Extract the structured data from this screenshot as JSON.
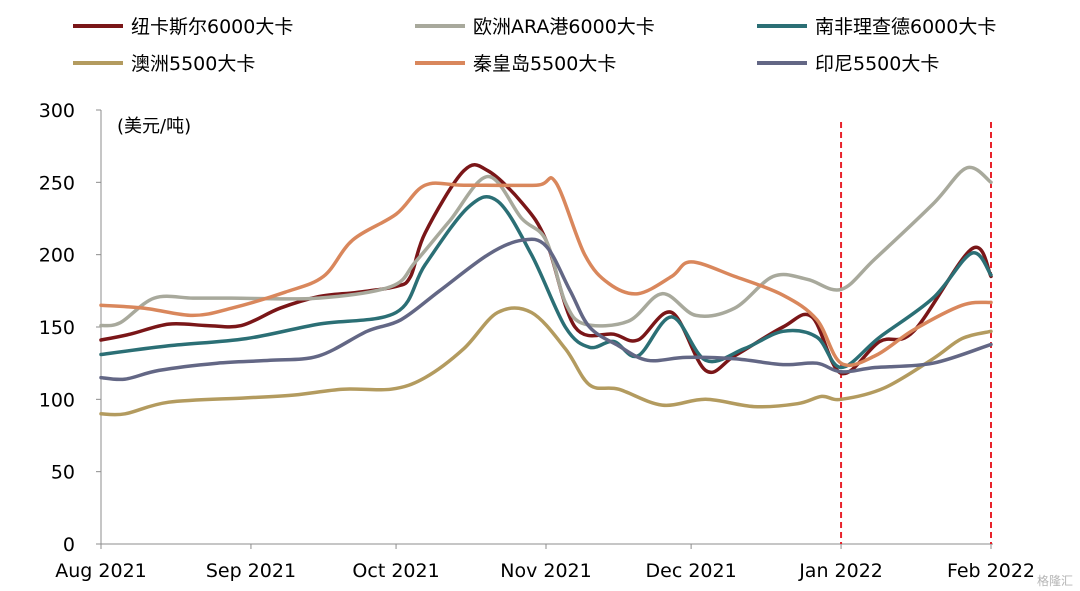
{
  "chart_data": {
    "type": "line",
    "title": "",
    "xlabel": "",
    "ylabel": "(美元/吨)",
    "ylim": [
      0,
      300
    ],
    "yticks": [
      0,
      50,
      100,
      150,
      200,
      250,
      300
    ],
    "xlim": [
      "2021-08-01",
      "2022-02-01"
    ],
    "x_tick_labels": [
      {
        "date": "2021-08-01",
        "label": "Aug 2021"
      },
      {
        "date": "2021-09-01",
        "label": "Sep 2021"
      },
      {
        "date": "2021-10-01",
        "label": "Oct 2021"
      },
      {
        "date": "2021-11-01",
        "label": "Nov 2021"
      },
      {
        "date": "2021-12-01",
        "label": "Dec 2021"
      },
      {
        "date": "2022-01-01",
        "label": "Jan 2022"
      },
      {
        "date": "2022-02-01",
        "label": "Feb 2022"
      }
    ],
    "vlines": [
      "2022-01-01",
      "2022-02-01"
    ],
    "vline_color": "#e8222b",
    "grid": false,
    "legend_position": "top",
    "series": [
      {
        "name": "纽卡斯尔6000大卡",
        "color": "#7a1618",
        "points": [
          [
            "2021-08-01",
            141
          ],
          [
            "2021-08-07",
            145
          ],
          [
            "2021-08-15",
            152
          ],
          [
            "2021-08-23",
            151
          ],
          [
            "2021-08-30",
            151
          ],
          [
            "2021-09-07",
            163
          ],
          [
            "2021-09-15",
            171
          ],
          [
            "2021-09-23",
            174
          ],
          [
            "2021-10-01",
            178
          ],
          [
            "2021-10-04",
            185
          ],
          [
            "2021-10-07",
            215
          ],
          [
            "2021-10-15",
            258
          ],
          [
            "2021-10-20",
            258
          ],
          [
            "2021-10-27",
            236
          ],
          [
            "2021-11-01",
            210
          ],
          [
            "2021-11-07",
            150
          ],
          [
            "2021-11-15",
            145
          ],
          [
            "2021-11-20",
            141
          ],
          [
            "2021-11-27",
            160
          ],
          [
            "2021-12-04",
            120
          ],
          [
            "2021-12-10",
            130
          ],
          [
            "2021-12-20",
            150
          ],
          [
            "2021-12-26",
            157
          ],
          [
            "2022-01-01",
            118
          ],
          [
            "2022-01-09",
            140
          ],
          [
            "2022-01-16",
            147
          ],
          [
            "2022-01-28",
            204
          ],
          [
            "2022-02-01",
            185
          ]
        ]
      },
      {
        "name": "欧洲ARA港6000大卡",
        "color": "#a8a99c",
        "points": [
          [
            "2021-08-01",
            151
          ],
          [
            "2021-08-05",
            153
          ],
          [
            "2021-08-12",
            170
          ],
          [
            "2021-08-20",
            170
          ],
          [
            "2021-08-28",
            170
          ],
          [
            "2021-09-15",
            170
          ],
          [
            "2021-09-30",
            178
          ],
          [
            "2021-10-05",
            195
          ],
          [
            "2021-10-12",
            223
          ],
          [
            "2021-10-20",
            254
          ],
          [
            "2021-10-27",
            225
          ],
          [
            "2021-11-01",
            210
          ],
          [
            "2021-11-05",
            167
          ],
          [
            "2021-11-09",
            152
          ],
          [
            "2021-11-18",
            154
          ],
          [
            "2021-11-25",
            173
          ],
          [
            "2021-12-02",
            158
          ],
          [
            "2021-12-10",
            163
          ],
          [
            "2021-12-18",
            185
          ],
          [
            "2021-12-25",
            183
          ],
          [
            "2022-01-01",
            176
          ],
          [
            "2022-01-08",
            197
          ],
          [
            "2022-01-20",
            235
          ],
          [
            "2022-01-27",
            260
          ],
          [
            "2022-02-01",
            250
          ]
        ]
      },
      {
        "name": "南非理查德6000大卡",
        "color": "#2b6f75",
        "points": [
          [
            "2021-08-01",
            131
          ],
          [
            "2021-08-15",
            137
          ],
          [
            "2021-08-31",
            142
          ],
          [
            "2021-09-15",
            152
          ],
          [
            "2021-10-01",
            160
          ],
          [
            "2021-10-07",
            193
          ],
          [
            "2021-10-16",
            233
          ],
          [
            "2021-10-22",
            237
          ],
          [
            "2021-10-29",
            200
          ],
          [
            "2021-11-05",
            150
          ],
          [
            "2021-11-10",
            136
          ],
          [
            "2021-11-15",
            140
          ],
          [
            "2021-11-20",
            130
          ],
          [
            "2021-11-27",
            157
          ],
          [
            "2021-12-04",
            127
          ],
          [
            "2021-12-12",
            135
          ],
          [
            "2021-12-20",
            147
          ],
          [
            "2021-12-27",
            143
          ],
          [
            "2022-01-01",
            122
          ],
          [
            "2022-01-09",
            143
          ],
          [
            "2022-01-20",
            170
          ],
          [
            "2022-01-28",
            201
          ],
          [
            "2022-02-01",
            186
          ]
        ]
      },
      {
        "name": "澳洲5500大卡",
        "color": "#b39b5f",
        "points": [
          [
            "2021-08-01",
            90
          ],
          [
            "2021-08-06",
            90
          ],
          [
            "2021-08-15",
            98
          ],
          [
            "2021-08-31",
            101
          ],
          [
            "2021-09-10",
            103
          ],
          [
            "2021-09-20",
            107
          ],
          [
            "2021-09-30",
            107
          ],
          [
            "2021-10-07",
            115
          ],
          [
            "2021-10-15",
            135
          ],
          [
            "2021-10-22",
            160
          ],
          [
            "2021-10-29",
            160
          ],
          [
            "2021-11-05",
            135
          ],
          [
            "2021-11-10",
            110
          ],
          [
            "2021-11-16",
            107
          ],
          [
            "2021-11-25",
            96
          ],
          [
            "2021-12-04",
            100
          ],
          [
            "2021-12-14",
            95
          ],
          [
            "2021-12-23",
            97
          ],
          [
            "2021-12-28",
            102
          ],
          [
            "2022-01-01",
            100
          ],
          [
            "2022-01-10",
            108
          ],
          [
            "2022-01-20",
            128
          ],
          [
            "2022-01-26",
            142
          ],
          [
            "2022-02-01",
            147
          ]
        ]
      },
      {
        "name": "秦皇岛5500大卡",
        "color": "#d9875c",
        "points": [
          [
            "2021-08-01",
            165
          ],
          [
            "2021-08-10",
            163
          ],
          [
            "2021-08-20",
            158
          ],
          [
            "2021-08-28",
            163
          ],
          [
            "2021-09-08",
            174
          ],
          [
            "2021-09-16",
            185
          ],
          [
            "2021-09-22",
            210
          ],
          [
            "2021-10-01",
            228
          ],
          [
            "2021-10-07",
            248
          ],
          [
            "2021-10-15",
            248
          ],
          [
            "2021-10-30",
            248
          ],
          [
            "2021-11-03",
            250
          ],
          [
            "2021-11-09",
            200
          ],
          [
            "2021-11-14",
            180
          ],
          [
            "2021-11-20",
            173
          ],
          [
            "2021-11-27",
            185
          ],
          [
            "2021-12-01",
            195
          ],
          [
            "2021-12-10",
            185
          ],
          [
            "2021-12-20",
            172
          ],
          [
            "2021-12-27",
            155
          ],
          [
            "2022-01-01",
            125
          ],
          [
            "2022-01-08",
            130
          ],
          [
            "2022-01-16",
            148
          ],
          [
            "2022-01-26",
            165
          ],
          [
            "2022-02-01",
            167
          ]
        ]
      },
      {
        "name": "印尼5500大卡",
        "color": "#636785",
        "points": [
          [
            "2021-08-01",
            115
          ],
          [
            "2021-08-06",
            114
          ],
          [
            "2021-08-13",
            120
          ],
          [
            "2021-08-25",
            125
          ],
          [
            "2021-09-05",
            127
          ],
          [
            "2021-09-15",
            130
          ],
          [
            "2021-09-25",
            147
          ],
          [
            "2021-10-02",
            155
          ],
          [
            "2021-10-10",
            175
          ],
          [
            "2021-10-20",
            200
          ],
          [
            "2021-10-27",
            210
          ],
          [
            "2021-11-01",
            206
          ],
          [
            "2021-11-06",
            175
          ],
          [
            "2021-11-10",
            150
          ],
          [
            "2021-11-16",
            137
          ],
          [
            "2021-11-22",
            127
          ],
          [
            "2021-11-30",
            129
          ],
          [
            "2021-12-10",
            128
          ],
          [
            "2021-12-20",
            124
          ],
          [
            "2021-12-27",
            125
          ],
          [
            "2022-01-01",
            119
          ],
          [
            "2022-01-08",
            122
          ],
          [
            "2022-01-20",
            125
          ],
          [
            "2022-02-01",
            138
          ]
        ]
      }
    ]
  },
  "watermark": "格隆汇"
}
